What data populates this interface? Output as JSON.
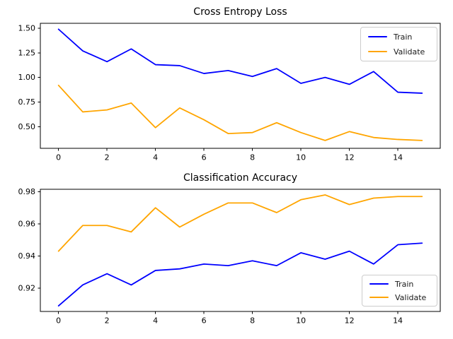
{
  "figure": {
    "background": "#ffffff"
  },
  "colors": {
    "train": "#0000ff",
    "validate": "#ffa500",
    "axis": "#000000",
    "tick_label": "#000000",
    "title": "#000000",
    "legend_border": "#cccccc",
    "legend_background": "#ffffff"
  },
  "chart_data": [
    {
      "type": "line",
      "title": "Cross Entropy Loss",
      "xlabel": "",
      "ylabel": "",
      "x": [
        0,
        1,
        2,
        3,
        4,
        5,
        6,
        7,
        8,
        9,
        10,
        11,
        12,
        13,
        14,
        15
      ],
      "series": [
        {
          "name": "Train",
          "color": "#0000ff",
          "values": [
            1.49,
            1.27,
            1.16,
            1.29,
            1.13,
            1.12,
            1.04,
            1.07,
            1.01,
            1.09,
            0.94,
            1.0,
            0.93,
            1.06,
            0.85,
            0.84
          ]
        },
        {
          "name": "Validate",
          "color": "#ffa500",
          "values": [
            0.92,
            0.65,
            0.67,
            0.74,
            0.49,
            0.69,
            0.57,
            0.43,
            0.44,
            0.54,
            0.44,
            0.36,
            0.45,
            0.39,
            0.37,
            0.36
          ]
        }
      ],
      "xticks": [
        0,
        2,
        4,
        6,
        8,
        10,
        12,
        14
      ],
      "xtick_labels": [
        "0",
        "2",
        "4",
        "6",
        "8",
        "10",
        "12",
        "14"
      ],
      "yticks": [
        0.5,
        0.75,
        1.0,
        1.25,
        1.5
      ],
      "ytick_labels": [
        "0.50",
        "0.75",
        "1.00",
        "1.25",
        "1.50"
      ],
      "xlim": [
        -0.75,
        15.75
      ],
      "ylim": [
        0.28,
        1.55
      ],
      "grid": false,
      "legend_position": "upper-right"
    },
    {
      "type": "line",
      "title": "Classification Accuracy",
      "xlabel": "",
      "ylabel": "",
      "x": [
        0,
        1,
        2,
        3,
        4,
        5,
        6,
        7,
        8,
        9,
        10,
        11,
        12,
        13,
        14,
        15
      ],
      "series": [
        {
          "name": "Train",
          "color": "#0000ff",
          "values": [
            0.909,
            0.922,
            0.929,
            0.922,
            0.931,
            0.932,
            0.935,
            0.934,
            0.937,
            0.934,
            0.942,
            0.938,
            0.943,
            0.935,
            0.947,
            0.948
          ]
        },
        {
          "name": "Validate",
          "color": "#ffa500",
          "values": [
            0.943,
            0.959,
            0.959,
            0.955,
            0.97,
            0.958,
            0.966,
            0.973,
            0.973,
            0.967,
            0.975,
            0.978,
            0.972,
            0.976,
            0.977,
            0.977
          ]
        }
      ],
      "xticks": [
        0,
        2,
        4,
        6,
        8,
        10,
        12,
        14
      ],
      "xtick_labels": [
        "0",
        "2",
        "4",
        "6",
        "8",
        "10",
        "12",
        "14"
      ],
      "yticks": [
        0.92,
        0.94,
        0.96,
        0.98
      ],
      "ytick_labels": [
        "0.92",
        "0.94",
        "0.96",
        "0.98"
      ],
      "xlim": [
        -0.75,
        15.75
      ],
      "ylim": [
        0.9055,
        0.9815
      ],
      "grid": false,
      "legend_position": "lower-right"
    }
  ]
}
